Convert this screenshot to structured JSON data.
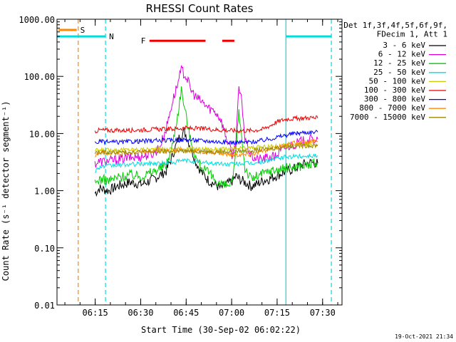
{
  "chart_data": {
    "type": "line",
    "title": "RHESSI Count Rates",
    "xlabel": "Start Time (30-Sep-02 06:02:22)",
    "ylabel": "Count Rate (s⁻¹ detector segment⁻¹)",
    "y_scale": "log",
    "ylim": [
      0.01,
      1000
    ],
    "xlim_minutes": [
      0,
      94
    ],
    "y_ticks": [
      "1000.00",
      "100.00",
      "10.00",
      "1.00",
      "0.10",
      "0.01"
    ],
    "y_tick_values": [
      1000,
      100,
      10,
      1,
      0.1,
      0.01
    ],
    "x_ticks": [
      "06:15",
      "06:30",
      "06:45",
      "07:00",
      "07:15",
      "07:30"
    ],
    "x_tick_values": [
      12.6,
      27.6,
      42.6,
      57.6,
      72.6,
      87.6
    ],
    "timestamp": "19-Oct-2021 21:34",
    "legend_header": [
      "Det 1f,3f,4f,5f,6f,9f,",
      "FDecim 1, Att 1"
    ],
    "legend_position": "right",
    "series": [
      {
        "name": "3 - 6 keV",
        "color": "#000000",
        "x": [
          12.5,
          14,
          17,
          20,
          24,
          28,
          32,
          36,
          38,
          40,
          42,
          44,
          46,
          48,
          50,
          52,
          54,
          56,
          58,
          59,
          60,
          62,
          64,
          66,
          68,
          70,
          72,
          74,
          76,
          78,
          80,
          82,
          84,
          86
        ],
        "y": [
          0.9,
          1.1,
          1.0,
          1.2,
          1.4,
          1.3,
          1.6,
          2.2,
          4.0,
          8.0,
          11.0,
          6.0,
          3.0,
          2.0,
          1.5,
          1.3,
          1.1,
          1.3,
          1.5,
          1.8,
          1.6,
          1.4,
          1.2,
          1.3,
          1.5,
          1.6,
          1.8,
          2.0,
          2.2,
          2.4,
          2.7,
          3.0,
          3.1,
          3.0
        ]
      },
      {
        "name": "6 - 12 keV",
        "color": "#dd00dd",
        "x": [
          12.5,
          14,
          17,
          20,
          24,
          28,
          32,
          34,
          36,
          38,
          40,
          41,
          42,
          43,
          44,
          46,
          48,
          50,
          52,
          54,
          55,
          56,
          58,
          59,
          60,
          61,
          62,
          64,
          66,
          68,
          70,
          72,
          74,
          76,
          78,
          80,
          82,
          84,
          86
        ],
        "y": [
          3.0,
          3.2,
          3.3,
          3.5,
          3.8,
          4.0,
          4.5,
          6.0,
          12.0,
          35.0,
          80.0,
          130.0,
          110.0,
          90.0,
          60.0,
          42.0,
          35.0,
          28.0,
          25.0,
          18.0,
          12.0,
          8.0,
          4.0,
          8.0,
          60.0,
          35.0,
          8.0,
          4.0,
          3.5,
          3.6,
          3.8,
          4.0,
          5.0,
          6.0,
          6.5,
          7.0,
          7.5,
          7.8,
          8.0
        ]
      },
      {
        "name": "12 - 25 keV",
        "color": "#00cc00",
        "x": [
          12.5,
          14,
          17,
          20,
          24,
          28,
          32,
          36,
          38,
          40,
          41,
          42,
          43,
          44,
          46,
          48,
          50,
          52,
          54,
          56,
          58,
          59,
          60,
          61,
          62,
          64,
          66,
          68,
          70,
          72,
          74,
          76,
          78,
          80,
          82,
          84,
          86
        ],
        "y": [
          1.3,
          1.6,
          1.5,
          1.7,
          1.9,
          1.8,
          2.2,
          2.8,
          6.0,
          25.0,
          60.0,
          30.0,
          15.0,
          8.0,
          3.5,
          2.5,
          2.0,
          1.6,
          1.3,
          1.2,
          1.4,
          5.0,
          25.0,
          8.0,
          2.5,
          1.6,
          1.8,
          2.0,
          2.2,
          2.3,
          2.4,
          2.5,
          2.6,
          2.7,
          2.8,
          2.9,
          2.9
        ]
      },
      {
        "name": "25 - 50 keV",
        "color": "#00dddd",
        "x": [
          12.5,
          14,
          20,
          26,
          32,
          38,
          42,
          44,
          48,
          52,
          56,
          60,
          64,
          68,
          72,
          76,
          80,
          84,
          86
        ],
        "y": [
          2.2,
          2.6,
          2.8,
          2.9,
          3.0,
          3.1,
          3.4,
          3.3,
          3.1,
          3.0,
          2.9,
          3.0,
          3.0,
          3.2,
          3.6,
          3.9,
          4.0,
          4.1,
          4.1
        ]
      },
      {
        "name": "50 - 100 keV",
        "color": "#cccc00",
        "x": [
          12.5,
          20,
          32,
          44,
          56,
          68,
          76,
          86
        ],
        "y": [
          5.0,
          5.2,
          5.3,
          5.4,
          5.3,
          5.8,
          6.3,
          6.5
        ]
      },
      {
        "name": "100 - 300 keV",
        "color": "#ee0000",
        "x": [
          12.5,
          14,
          20,
          26,
          32,
          38,
          42,
          46,
          50,
          54,
          58,
          62,
          66,
          68,
          70,
          72,
          74,
          76,
          80,
          84,
          86
        ],
        "y": [
          11.0,
          11.5,
          11.3,
          11.5,
          11.8,
          12.0,
          12.5,
          12.2,
          12.0,
          11.5,
          11.3,
          11.2,
          11.5,
          12.0,
          13.5,
          15.5,
          17.0,
          18.0,
          18.5,
          19.0,
          18.5
        ]
      },
      {
        "name": "300 - 800 keV",
        "color": "#0000ff",
        "x": [
          12.5,
          14,
          20,
          26,
          32,
          38,
          42,
          46,
          50,
          54,
          58,
          62,
          66,
          70,
          74,
          78,
          82,
          86
        ],
        "y": [
          6.8,
          7.2,
          7.0,
          7.3,
          7.5,
          7.6,
          7.8,
          7.6,
          7.4,
          7.1,
          7.0,
          7.0,
          7.3,
          8.0,
          9.0,
          10.0,
          10.5,
          10.6
        ]
      },
      {
        "name": "800 - 7000 keV",
        "color": "#ff8800",
        "x": [
          12.5,
          14,
          20,
          26,
          32,
          38,
          42,
          46,
          50,
          54,
          58,
          62,
          66,
          70,
          74,
          78,
          82,
          86
        ],
        "y": [
          4.2,
          4.6,
          4.5,
          4.7,
          4.9,
          5.0,
          5.1,
          4.9,
          4.7,
          4.5,
          4.3,
          4.3,
          4.6,
          5.2,
          6.0,
          6.8,
          7.1,
          7.2
        ]
      },
      {
        "name": "7000 - 15000 keV",
        "color": "#998800",
        "x": [
          12.5,
          20,
          32,
          44,
          56,
          68,
          76,
          86
        ],
        "y": [
          4.6,
          4.7,
          4.8,
          4.9,
          4.8,
          5.2,
          6.0,
          6.2
        ]
      }
    ],
    "annotations": [
      {
        "label": "S",
        "color": "#ff8800",
        "x_start": 0.5,
        "x_end": 6.5,
        "y": 650
      },
      {
        "label": "N",
        "color": "#00dddd",
        "x_start": 0,
        "x_end": 16,
        "y": 500
      },
      {
        "label": "",
        "color": "#00dddd",
        "x_start": 75.5,
        "x_end": 90.5,
        "y": 500
      },
      {
        "label": "F",
        "color": "#ee0000",
        "x_start": 30.5,
        "x_end": 49,
        "y": 420
      },
      {
        "label": "",
        "color": "#ee0000",
        "x_start": 54.5,
        "x_end": 58.5,
        "y": 420
      }
    ],
    "vertical_lines": [
      {
        "x": 7.0,
        "color": "#ff8800",
        "style": "dashed"
      },
      {
        "x": 16.0,
        "color": "#00dddd",
        "style": "dashed"
      },
      {
        "x": 75.5,
        "color": "#00dddd",
        "style": "solid"
      },
      {
        "x": 90.5,
        "color": "#00dddd",
        "style": "dashed"
      }
    ]
  }
}
